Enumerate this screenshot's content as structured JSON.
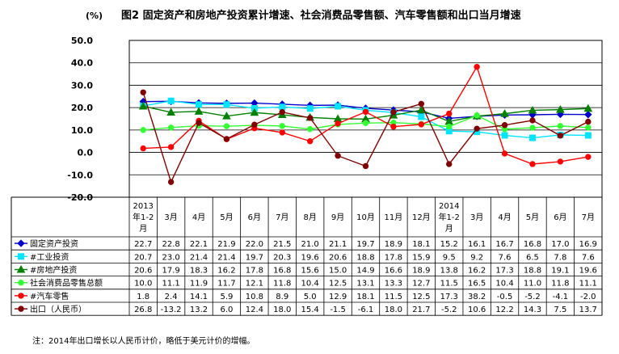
{
  "chart_data": {
    "type": "line",
    "title": "图2 固定资产和房地产投资累计增速、社会消费品零售额、汽车零售额和出口当月增速",
    "unit": "(%)",
    "ylim": [
      -20,
      50
    ],
    "yticks": [
      "50.0",
      "40.0",
      "30.0",
      "20.0",
      "10.0",
      "0.0",
      "-10.0",
      "-20.0"
    ],
    "grid": true,
    "legend": "bottom-table",
    "categories": [
      [
        "2013",
        "年1-2",
        "月"
      ],
      [
        "3月"
      ],
      [
        "4月"
      ],
      [
        "5月"
      ],
      [
        "6月"
      ],
      [
        "7月"
      ],
      [
        "8月"
      ],
      [
        "9月"
      ],
      [
        "10月"
      ],
      [
        "11月"
      ],
      [
        "12月"
      ],
      [
        "2014",
        "年1-2",
        "月"
      ],
      [
        "3月"
      ],
      [
        "4月"
      ],
      [
        "5月"
      ],
      [
        "6月"
      ],
      [
        "7月"
      ]
    ],
    "series": [
      {
        "name": "固定资产投资",
        "color": "#0000cc",
        "marker": "diamond",
        "values": [
          22.7,
          22.8,
          22.1,
          21.9,
          22.0,
          21.5,
          21.0,
          21.1,
          19.7,
          18.9,
          18.1,
          15.2,
          16.1,
          16.7,
          16.8,
          17.0,
          16.9
        ],
        "labels": [
          "22.7",
          "22.8",
          "22.1",
          "21.9",
          "22.0",
          "21.5",
          "21.0",
          "21.1",
          "19.7",
          "18.9",
          "18.1",
          "15.2",
          "16.1",
          "16.7",
          "16.8",
          "17.0",
          "16.9"
        ]
      },
      {
        "name": "#工业投资",
        "color": "#00e5ff",
        "marker": "square",
        "values": [
          20.7,
          23.0,
          21.4,
          21.4,
          19.7,
          20.3,
          19.6,
          20.6,
          18.8,
          17.8,
          15.9,
          9.5,
          9.2,
          7.6,
          6.5,
          7.8,
          7.6
        ],
        "labels": [
          "20.7",
          "23.0",
          "21.4",
          "21.4",
          "19.7",
          "20.3",
          "19.6",
          "20.6",
          "18.8",
          "17.8",
          "15.9",
          "9.5",
          "9.2",
          "7.6",
          "6.5",
          "7.8",
          "7.6"
        ]
      },
      {
        "name": "#房地产投资",
        "color": "#008000",
        "marker": "triangle",
        "values": [
          20.6,
          17.9,
          18.3,
          16.2,
          17.8,
          16.8,
          15.6,
          15.0,
          14.9,
          16.6,
          18.9,
          13.8,
          16.2,
          17.3,
          18.8,
          19.1,
          19.6
        ],
        "labels": [
          "20.6",
          "17.9",
          "18.3",
          "16.2",
          "17.8",
          "16.8",
          "15.6",
          "15.0",
          "14.9",
          "16.6",
          "18.9",
          "13.8",
          "16.2",
          "17.3",
          "18.8",
          "19.1",
          "19.6"
        ]
      },
      {
        "name": "社会消费品零售总额",
        "color": "#33ff33",
        "marker": "circle",
        "values": [
          10.0,
          11.1,
          11.9,
          11.7,
          12.1,
          11.8,
          10.4,
          12.5,
          13.1,
          13.3,
          12.7,
          11.5,
          16.5,
          10.4,
          11.0,
          11.8,
          11.1
        ],
        "labels": [
          "10.0",
          "11.1",
          "11.9",
          "11.7",
          "12.1",
          "11.8",
          "10.4",
          "12.5",
          "13.1",
          "13.3",
          "12.7",
          "11.5",
          "16.5",
          "10.4",
          "11.0",
          "11.8",
          "11.1"
        ]
      },
      {
        "name": "#汽车零售",
        "color": "#ff0000",
        "marker": "circle",
        "values": [
          1.8,
          2.4,
          14.1,
          5.9,
          10.8,
          8.9,
          5.0,
          12.9,
          18.1,
          11.5,
          12.5,
          17.3,
          38.2,
          -0.5,
          -5.2,
          -4.1,
          -2.0
        ],
        "labels": [
          "1.8",
          "2.4",
          "14.1",
          "5.9",
          "10.8",
          "8.9",
          "5.0",
          "12.9",
          "18.1",
          "11.5",
          "12.5",
          "17.3",
          "38.2",
          "-0.5",
          "-5.2",
          "-4.1",
          "-2.0"
        ]
      },
      {
        "name": "出口（人民币）",
        "color": "#800000",
        "marker": "circle",
        "values": [
          26.8,
          -13.2,
          13.2,
          6.0,
          12.4,
          18.0,
          15.4,
          -1.5,
          -6.1,
          18.0,
          21.7,
          -5.2,
          10.6,
          12.2,
          14.3,
          7.5,
          13.7
        ],
        "labels": [
          "26.8",
          "-13.2",
          "13.2",
          "6.0",
          "12.4",
          "18.0",
          "15.4",
          "-1.5",
          "-6.1",
          "18.0",
          "21.7",
          "-5.2",
          "10.6",
          "12.2",
          "14.3",
          "7.5",
          "13.7"
        ]
      }
    ]
  },
  "note": "注：2014年出口增长以人民币计价，略低于美元计价的增幅。"
}
